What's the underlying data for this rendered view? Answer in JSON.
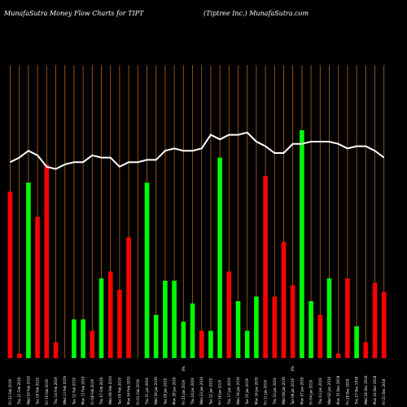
{
  "header": {
    "title_left": "MunafaSutra  Money Flow  Charts for TIPT",
    "title_right": "(Tiptree   Inc.) MunafaSutra.com"
  },
  "colors": {
    "background": "#000000",
    "grid": "#b5651d",
    "up": "#00ff00",
    "down": "#ff0000",
    "line": "#ffffff"
  },
  "chart_data": {
    "type": "bar",
    "grid": true,
    "ylim": [
      0,
      100
    ],
    "values": [
      73,
      2,
      77,
      62,
      85,
      7,
      0,
      17,
      17,
      12,
      35,
      38,
      30,
      53,
      0,
      77,
      19,
      34,
      34,
      16,
      24,
      12,
      12,
      88,
      38,
      25,
      12,
      27,
      80,
      27,
      51,
      32,
      100,
      25,
      19,
      35,
      2,
      35,
      14,
      7,
      33,
      29
    ],
    "flow": [
      "down",
      "down",
      "up",
      "down",
      "down",
      "down",
      "up",
      "up",
      "up",
      "down",
      "up",
      "down",
      "down",
      "down",
      "up",
      "up",
      "up",
      "up",
      "up",
      "up",
      "up",
      "down",
      "up",
      "up",
      "down",
      "up",
      "up",
      "up",
      "down",
      "down",
      "down",
      "down",
      "up",
      "up",
      "down",
      "up",
      "down",
      "down",
      "up",
      "down",
      "down",
      "down"
    ],
    "line": [
      86,
      88,
      91,
      89,
      84,
      83,
      85,
      86,
      86,
      89,
      88,
      88,
      84,
      86,
      86,
      87,
      87,
      91,
      92,
      91,
      91,
      92,
      98,
      96,
      98,
      98,
      99,
      95,
      93,
      90,
      90,
      94,
      94,
      95,
      95,
      95,
      94,
      92,
      93,
      93,
      91,
      88
    ],
    "xlabels": [
      "Fri 22 Feb 2019",
      "Thu 21 Feb 2019",
      "Wed 20 Feb 2019",
      "Tue 19 Feb 2019",
      "Fri 15 Feb 2019",
      "Thu 14 Feb 2019",
      "Wed 13 Feb 2019",
      "Tue 12 Feb 2019",
      "Mon 11 Feb 2019",
      "Fri 08 Feb 2019",
      "Thu 07 Feb 2019",
      "Wed 06 Feb 2019",
      "Tue 05 Feb 2019",
      "Mon 04 Feb 2019",
      "Fri 01 Feb 2019",
      "Thu 31 Jan 2019",
      "Wed 30 Jan 2019",
      "Tue 29 Jan 2019",
      "Mon 28 Jan 2019",
      "Fri 25 Jan 2019",
      "Thu 24 Jan 2019",
      "Wed 23 Jan 2019",
      "Tue 22 Jan 2019",
      "Fri 18 Jan 2019",
      "Thu 17 Jan 2019",
      "Wed 16 Jan 2019",
      "Tue 15 Jan 2019",
      "Mon 14 Jan 2019",
      "Fri 11 Jan 2019",
      "Thu 10 Jan 2019",
      "Wed 09 Jan 2019",
      "Tue 08 Jan 2019",
      "Mon 07 Jan 2019",
      "Fri 04 Jan 2019",
      "Thu 03 Jan 2019",
      "Wed 02 Jan 2019",
      "Mon 31 Dec 2018",
      "Fri 28 Dec 2018",
      "Thu 27 Dec 2018",
      "Wed 26 Dec 2018",
      "Mon 24 Dec 2018",
      "Fri 21 Dec 2018"
    ],
    "markers": [
      {
        "index": 19,
        "text": "0%"
      },
      {
        "index": 31,
        "text": "0%"
      }
    ]
  }
}
